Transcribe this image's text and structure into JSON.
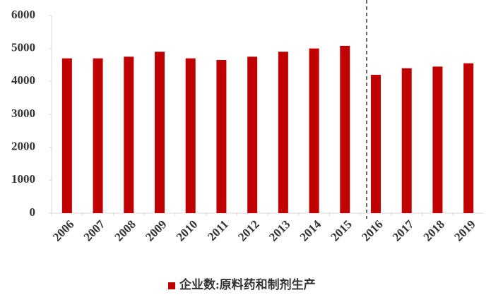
{
  "chart_data": {
    "type": "bar",
    "categories": [
      "2006",
      "2007",
      "2008",
      "2009",
      "2010",
      "2011",
      "2012",
      "2013",
      "2014",
      "2015",
      "2016",
      "2017",
      "2018",
      "2019"
    ],
    "series": [
      {
        "name": "企业数:原料药和制剂生产",
        "color": "#c00000",
        "values": [
          4700,
          4700,
          4750,
          4900,
          4700,
          4650,
          4750,
          4900,
          5000,
          5080,
          4200,
          4400,
          4450,
          4550
        ]
      }
    ],
    "ylim": [
      0,
      6000
    ],
    "yticks": [
      0,
      1000,
      2000,
      3000,
      4000,
      5000,
      6000
    ],
    "grid": false,
    "legend": "bottom"
  }
}
